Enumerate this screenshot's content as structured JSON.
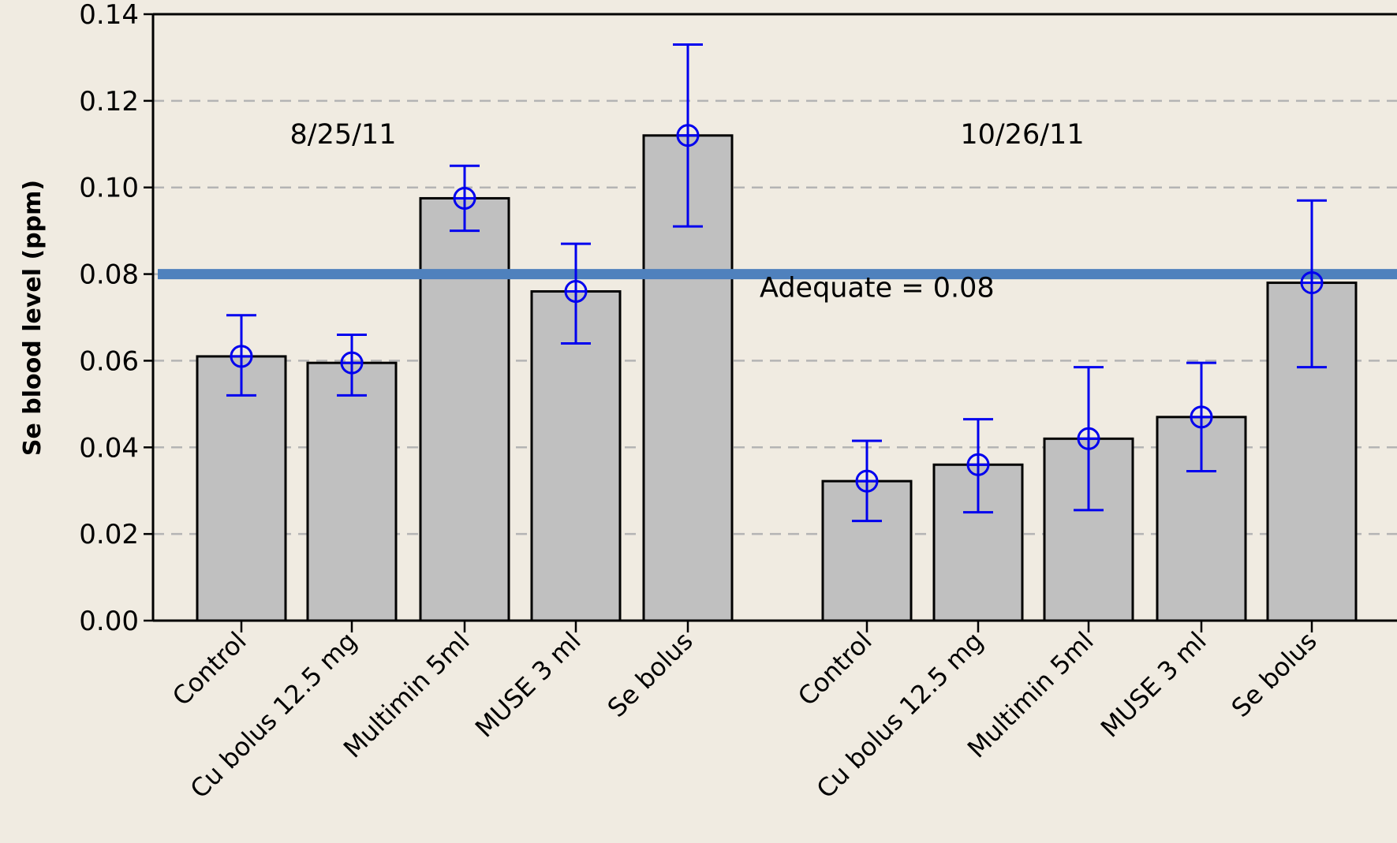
{
  "chart_data": {
    "type": "bar",
    "ylabel": "Se blood level (ppm)",
    "ylim": [
      0,
      0.14
    ],
    "yticks": [
      "0.00",
      "0.02",
      "0.04",
      "0.06",
      "0.08",
      "0.10",
      "0.12",
      "0.14"
    ],
    "grid": "horizontal dashed",
    "groups": [
      {
        "label": "8/25/11",
        "categories": [
          "Control",
          "Cu bolus 12.5 mg",
          "Multimin 5ml",
          "MUSE 3 ml",
          "Se bolus"
        ],
        "values": [
          0.061,
          0.0595,
          0.0975,
          0.076,
          0.112
        ],
        "error_low": [
          0.052,
          0.052,
          0.09,
          0.064,
          0.091
        ],
        "error_high": [
          0.0705,
          0.066,
          0.105,
          0.087,
          0.133
        ]
      },
      {
        "label": "10/26/11",
        "categories": [
          "Control",
          "Cu bolus 12.5 mg",
          "Multimin 5ml",
          "MUSE 3 ml",
          "Se bolus"
        ],
        "values": [
          0.0322,
          0.036,
          0.042,
          0.047,
          0.078
        ],
        "error_low": [
          0.023,
          0.025,
          0.0255,
          0.0345,
          0.0585
        ],
        "error_high": [
          0.0415,
          0.0465,
          0.0585,
          0.0595,
          0.097
        ]
      }
    ],
    "reference_line": {
      "value": 0.08,
      "label": "Adequate = 0.08",
      "color": "#4f81bd"
    },
    "colors": {
      "bar": "#c0c0c0",
      "bar_stroke": "#000000",
      "error": "#0000ee",
      "grid": "#b4b4b4"
    }
  }
}
